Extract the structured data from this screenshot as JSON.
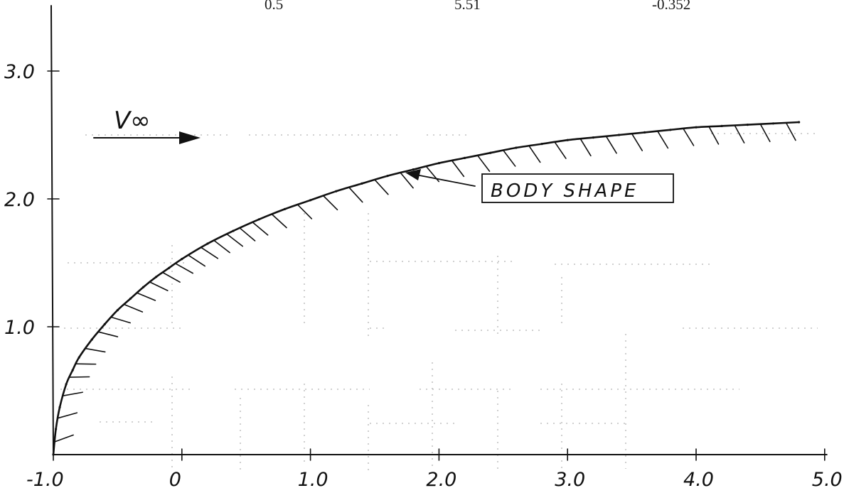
{
  "header_values": [
    "0.5",
    "5.51",
    "-0.352"
  ],
  "chart_data": {
    "type": "line",
    "title": "",
    "xlabel": "",
    "ylabel": "",
    "xlim": [
      -1.0,
      5.0
    ],
    "ylim": [
      0,
      3.5
    ],
    "x_ticks": [
      -1.0,
      0,
      1.0,
      2.0,
      3.0,
      4.0,
      5.0
    ],
    "x_tick_labels": [
      "-1.0",
      "0",
      "1.0",
      "2.0",
      "3.0",
      "4.0",
      "5.0"
    ],
    "y_ticks": [
      1.0,
      2.0,
      3.0
    ],
    "y_tick_labels": [
      "1.0",
      "2.0",
      "3.0"
    ],
    "grid": false,
    "series": [
      {
        "x": [
          -1.0,
          -0.98,
          -0.95,
          -0.9,
          -0.85,
          -0.8,
          -0.7,
          -0.6,
          -0.5,
          -0.4,
          -0.3,
          -0.2,
          -0.1,
          0.0,
          0.2,
          0.4,
          0.6,
          0.8,
          1.0,
          1.2,
          1.4,
          1.6,
          1.8,
          2.0,
          2.2,
          2.4,
          2.6,
          2.8,
          3.0,
          3.2,
          3.4,
          3.6,
          3.8,
          4.0,
          4.2,
          4.4,
          4.6,
          4.8
        ],
        "y": [
          0.0,
          0.2,
          0.37,
          0.55,
          0.66,
          0.76,
          0.9,
          1.02,
          1.13,
          1.22,
          1.31,
          1.39,
          1.46,
          1.53,
          1.65,
          1.75,
          1.84,
          1.92,
          1.99,
          2.06,
          2.12,
          2.18,
          2.23,
          2.28,
          2.32,
          2.36,
          2.4,
          2.43,
          2.46,
          2.48,
          2.5,
          2.52,
          2.54,
          2.56,
          2.57,
          2.58,
          2.59,
          2.6
        ]
      }
    ],
    "annotations": {
      "velocity_label": "V∞",
      "body_label": "BODY SHAPE"
    }
  }
}
